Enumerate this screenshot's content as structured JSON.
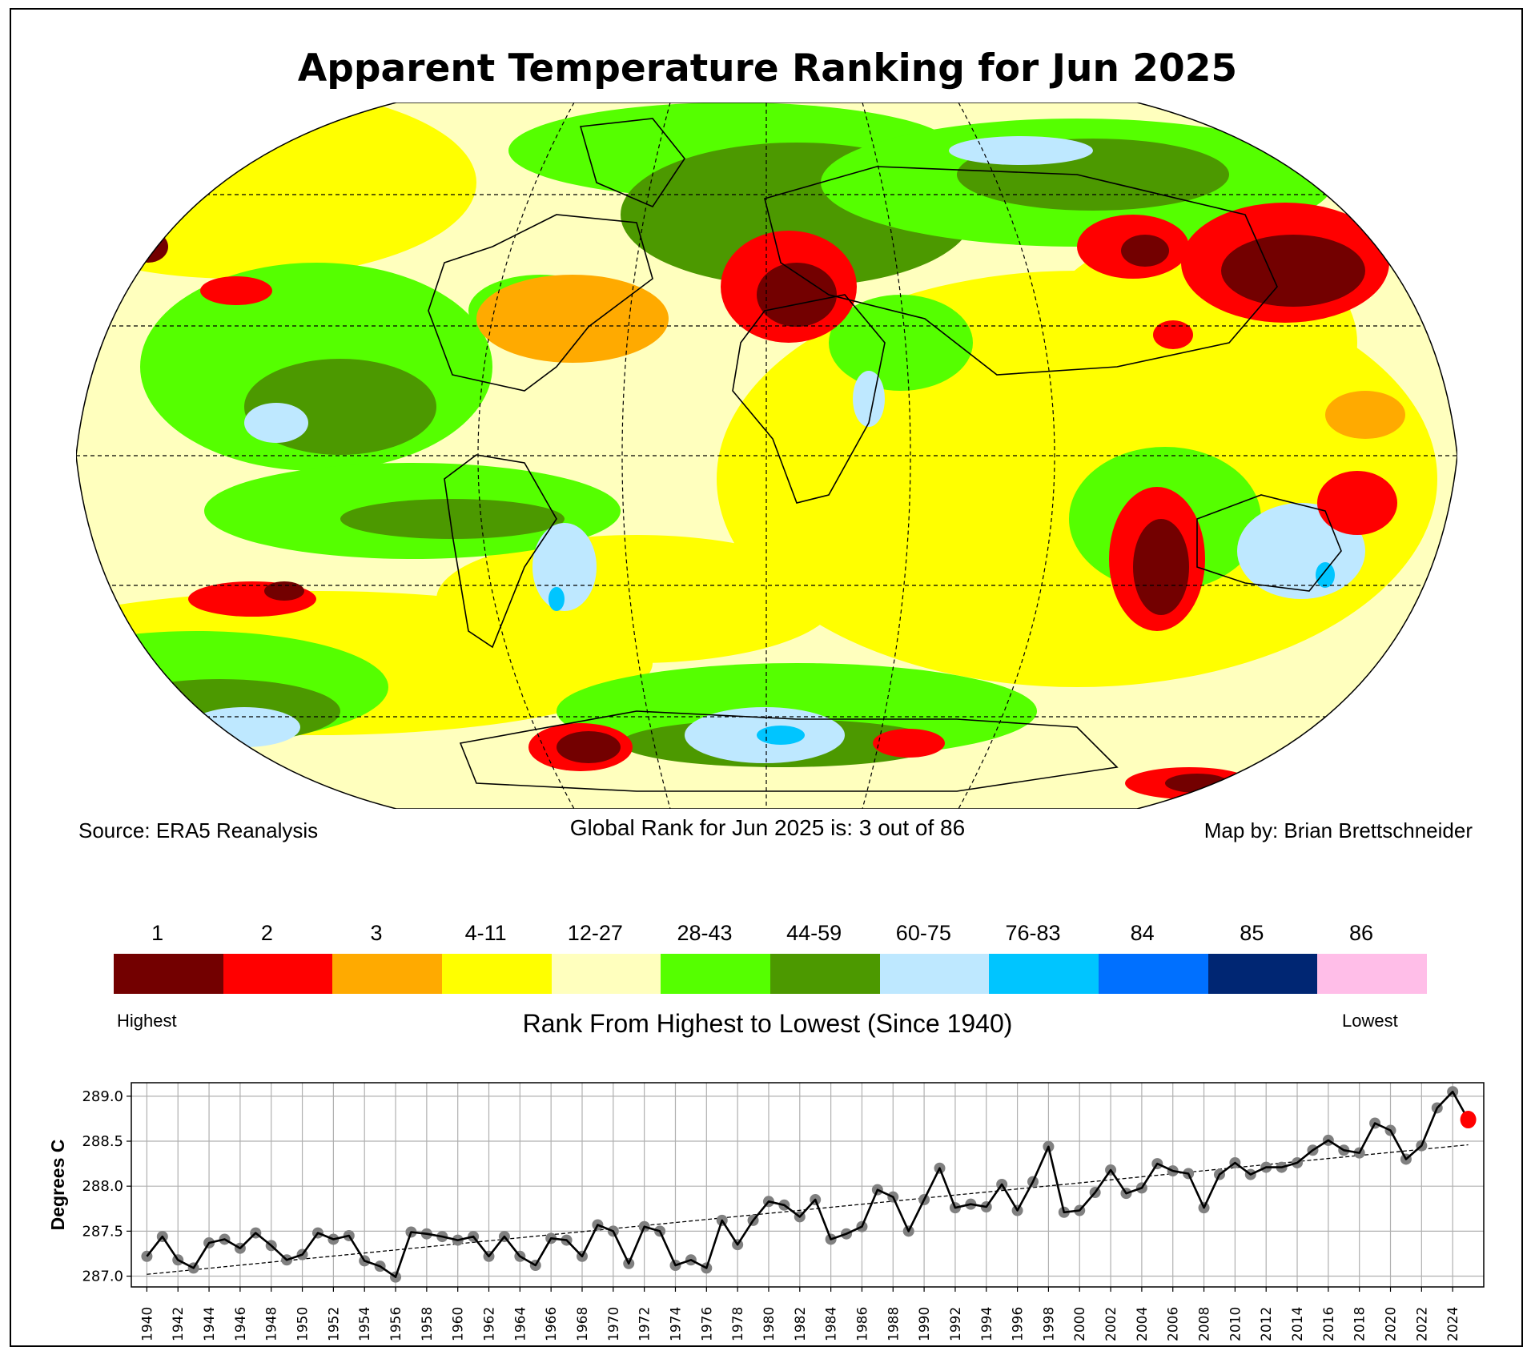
{
  "title": "Apparent Temperature Ranking for Jun 2025",
  "captions": {
    "source": "Source: ERA5 Reanalysis",
    "global_rank": "Global Rank for Jun 2025 is: 3 out of 86",
    "credit": "Map by: Brian Brettschneider"
  },
  "colorbar": {
    "title": "Rank From Highest to Lowest (Since 1940)",
    "low_end": "Highest",
    "high_end": "Lowest",
    "bins": [
      {
        "label": "1",
        "color": "#730000"
      },
      {
        "label": "2",
        "color": "#ff0000"
      },
      {
        "label": "3",
        "color": "#ffaa00"
      },
      {
        "label": "4-11",
        "color": "#ffff00"
      },
      {
        "label": "12-27",
        "color": "#ffffbe"
      },
      {
        "label": "28-43",
        "color": "#55ff00"
      },
      {
        "label": "44-59",
        "color": "#4c9900"
      },
      {
        "label": "60-75",
        "color": "#bee8ff"
      },
      {
        "label": "76-83",
        "color": "#00c5ff"
      },
      {
        "label": "84",
        "color": "#0070ff"
      },
      {
        "label": "85",
        "color": "#002673"
      },
      {
        "label": "86",
        "color": "#ffbee8"
      }
    ]
  },
  "chart_data": [
    {
      "type": "heatmap",
      "title": "Apparent Temperature Ranking for Jun 2025",
      "projection": "Robinson world map",
      "value": "rank of June 2025 apparent temperature among 86 Junes (1940-2025)",
      "colors_legend": "colorbar.bins"
    },
    {
      "type": "line",
      "title": "",
      "xlabel": "",
      "ylabel": "Degrees C",
      "ylim": [
        286.88,
        289.15
      ],
      "xlim": [
        1939,
        2026
      ],
      "yticks": [
        "287.0",
        "287.5",
        "288.0",
        "288.5",
        "289.0"
      ],
      "xticks": [
        "1940",
        "1942",
        "1944",
        "1946",
        "1948",
        "1950",
        "1952",
        "1954",
        "1956",
        "1958",
        "1960",
        "1962",
        "1964",
        "1966",
        "1968",
        "1970",
        "1972",
        "1974",
        "1976",
        "1978",
        "1980",
        "1982",
        "1984",
        "1986",
        "1988",
        "1990",
        "1992",
        "1994",
        "1996",
        "1998",
        "2000",
        "2002",
        "2004",
        "2006",
        "2008",
        "2010",
        "2012",
        "2014",
        "2016",
        "2018",
        "2020",
        "2022",
        "2024"
      ],
      "grid": true,
      "x": [
        1940,
        1941,
        1942,
        1943,
        1944,
        1945,
        1946,
        1947,
        1948,
        1949,
        1950,
        1951,
        1952,
        1953,
        1954,
        1955,
        1956,
        1957,
        1958,
        1959,
        1960,
        1961,
        1962,
        1963,
        1964,
        1965,
        1966,
        1967,
        1968,
        1969,
        1970,
        1971,
        1972,
        1973,
        1974,
        1975,
        1976,
        1977,
        1978,
        1979,
        1980,
        1981,
        1982,
        1983,
        1984,
        1985,
        1986,
        1987,
        1988,
        1989,
        1990,
        1991,
        1992,
        1993,
        1994,
        1995,
        1996,
        1997,
        1998,
        1999,
        2000,
        2001,
        2002,
        2003,
        2004,
        2005,
        2006,
        2007,
        2008,
        2009,
        2010,
        2011,
        2012,
        2013,
        2014,
        2015,
        2016,
        2017,
        2018,
        2019,
        2020,
        2021,
        2022,
        2023,
        2024,
        2025
      ],
      "series": [
        {
          "name": "Global mean apparent temperature",
          "values": [
            287.22,
            287.44,
            287.18,
            287.09,
            287.37,
            287.41,
            287.31,
            287.48,
            287.34,
            287.18,
            287.24,
            287.48,
            287.41,
            287.45,
            287.17,
            287.11,
            286.99,
            287.49,
            287.47,
            287.44,
            287.4,
            287.44,
            287.22,
            287.44,
            287.22,
            287.12,
            287.42,
            287.4,
            287.22,
            287.57,
            287.5,
            287.14,
            287.55,
            287.5,
            287.12,
            287.18,
            287.09,
            287.62,
            287.35,
            287.62,
            287.83,
            287.79,
            287.66,
            287.85,
            287.41,
            287.47,
            287.55,
            287.96,
            287.88,
            287.5,
            287.85,
            288.2,
            287.76,
            287.8,
            287.77,
            288.02,
            287.73,
            288.05,
            288.44,
            287.71,
            287.73,
            287.93,
            288.18,
            287.92,
            287.98,
            288.25,
            288.17,
            288.14,
            287.76,
            288.13,
            288.26,
            288.13,
            288.21,
            288.21,
            288.26,
            288.4,
            288.51,
            288.4,
            288.37,
            288.7,
            288.62,
            288.3,
            288.45,
            288.87,
            289.05,
            288.74
          ]
        },
        {
          "name": "Linear trend",
          "x": [
            1940,
            2025
          ],
          "values": [
            287.02,
            288.46
          ]
        }
      ],
      "highlight": {
        "x": 2025,
        "value": 288.74,
        "color": "#ff0000"
      }
    }
  ]
}
